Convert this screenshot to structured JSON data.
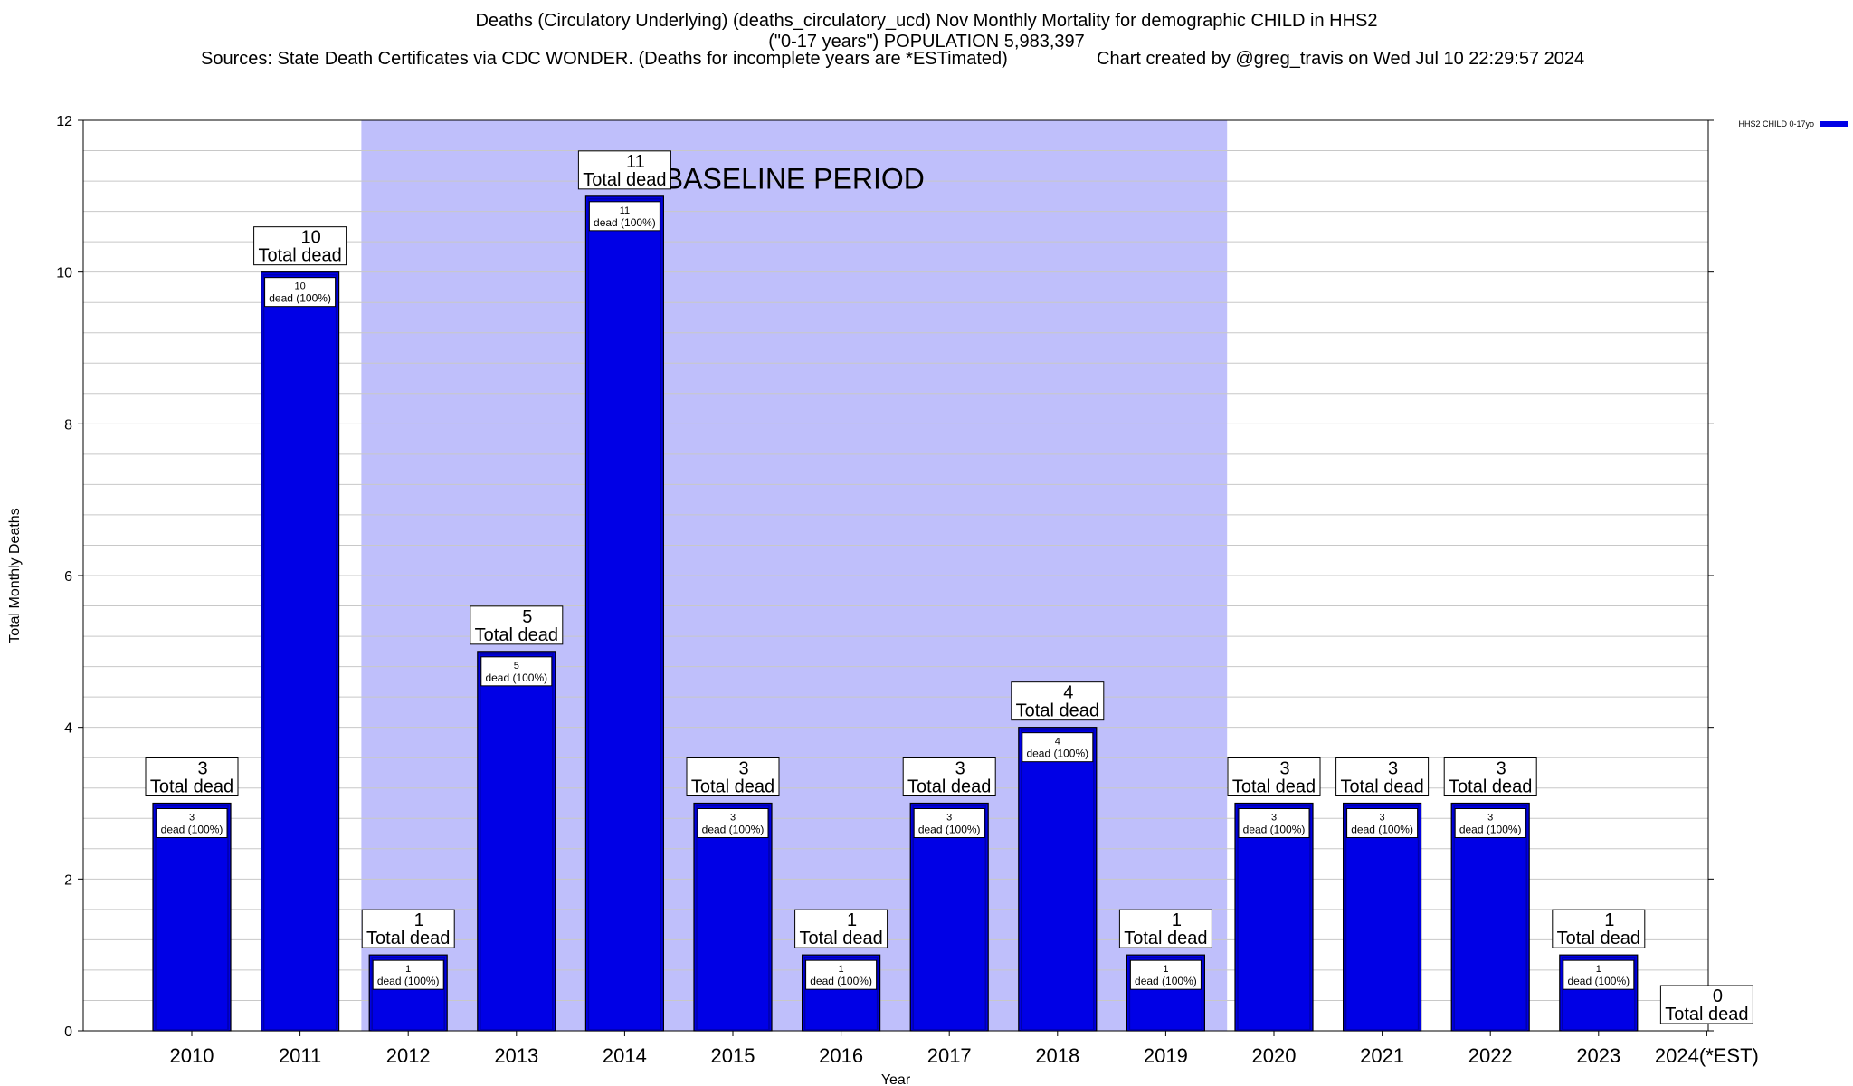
{
  "chart_data": {
    "type": "bar",
    "title": "Deaths (Circulatory Underlying) (deaths_circulatory_ucd) Nov Monthly Mortality for demographic CHILD in HHS2",
    "subtitle": "(\"0-17 years\") POPULATION 5,983,397",
    "sources": "Sources: State Death Certificates via CDC WONDER. (Deaths for incomplete years are *ESTimated)",
    "credit": "Chart created by @greg_travis on Wed Jul 10 22:29:57 2024",
    "xlabel": "Year",
    "ylabel": "Total Monthly Deaths",
    "ylim": [
      0,
      12
    ],
    "y_ticks": [
      "0",
      "2",
      "4",
      "6",
      "8",
      "10",
      "12"
    ],
    "grid": true,
    "legend_position": "top-right",
    "categories": [
      "2010",
      "2011",
      "2012",
      "2013",
      "2014",
      "2015",
      "2016",
      "2017",
      "2018",
      "2019",
      "2020",
      "2021",
      "2022",
      "2023",
      "2024(*EST)"
    ],
    "series": [
      {
        "name": "HHS2 CHILD 0-17yo",
        "color": "#0000e6",
        "values": [
          3,
          10,
          1,
          5,
          11,
          3,
          1,
          3,
          4,
          1,
          3,
          3,
          3,
          1,
          0
        ]
      }
    ],
    "total_label_suffix": "Total dead",
    "inner_label_suffix": "dead (100%)",
    "baseline": {
      "label": "BASELINE PERIOD",
      "start": "2012",
      "end": "2019",
      "color": "#bfbffb"
    }
  }
}
